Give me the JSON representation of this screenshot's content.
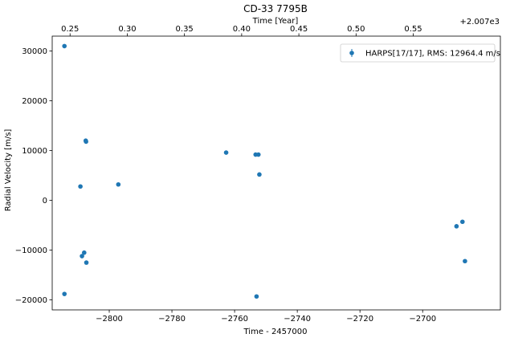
{
  "chart_data": {
    "type": "scatter",
    "title": "CD-33  7795B",
    "xlabel": "Time - 2457000",
    "ylabel": "Radial Velocity [m/s]",
    "top_xlabel": "Time [Year]",
    "top_offset_text": "+2.007e3",
    "xlim": [
      -2818.2,
      -2675.2
    ],
    "ylim": [
      -22000,
      33000
    ],
    "xticks": [
      -2800,
      -2780,
      -2760,
      -2740,
      -2720,
      -2700
    ],
    "xtick_labels": [
      "−2800",
      "−2780",
      "−2760",
      "−2740",
      "−2720",
      "−2700"
    ],
    "yticks": [
      -20000,
      -10000,
      0,
      10000,
      20000,
      30000
    ],
    "ytick_labels": [
      "−20000",
      "−10000",
      "0",
      "10000",
      "20000",
      "30000"
    ],
    "top_xticks": [
      -2812.5,
      -2794.25,
      -2776.0,
      -2757.75,
      -2739.5,
      -2721.25,
      -2703.0
    ],
    "top_xtick_labels": [
      "0.25",
      "0.30",
      "0.35",
      "0.40",
      "0.45",
      "0.50",
      "0.55"
    ],
    "legend": {
      "position": "top-right",
      "label": "HARPS[17/17], RMS:   12964.4 m/s"
    },
    "grid": false,
    "color": "#1f77b4",
    "series": [
      {
        "name": "HARPS[17/17], RMS:   12964.4 m/s",
        "x": [
          -2814.3,
          -2814.3,
          -2807.5,
          -2807.4,
          -2807.3,
          -2809.2,
          -2808.7,
          -2808.0,
          -2797.1,
          -2762.7,
          -2753.3,
          -2752.4,
          -2752.1,
          -2753.0,
          -2689.2,
          -2687.3,
          -2686.5
        ],
        "y": [
          31000,
          -18800,
          12000,
          11800,
          -12500,
          2800,
          -11200,
          -10500,
          3200,
          9600,
          9200,
          9200,
          5200,
          -19300,
          -5200,
          -4300,
          -12200
        ]
      }
    ]
  }
}
